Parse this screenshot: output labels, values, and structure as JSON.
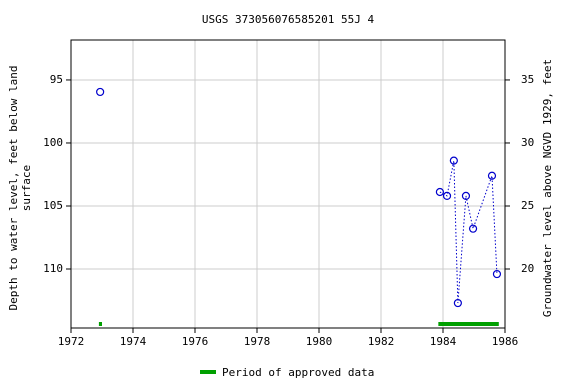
{
  "chart_data": {
    "type": "scatter",
    "title": "USGS 373056076585201 55J  4",
    "ylabel": [
      "Depth to water level, feet below land",
      "surface"
    ],
    "y2label": "Groundwater level above NGVD 1929, feet",
    "x": [
      1972.94,
      null,
      1983.9,
      1984.13,
      1984.35,
      1984.48,
      1984.74,
      1984.97,
      1985.58,
      1985.74
    ],
    "series": [
      {
        "color": "#0000cc",
        "values": [
          95.95,
          null,
          103.89,
          104.2,
          101.4,
          112.7,
          104.2,
          106.8,
          102.6,
          110.4
        ]
      }
    ],
    "xlim": [
      1972,
      1986
    ],
    "xticks": [
      1972,
      1974,
      1976,
      1978,
      1980,
      1982,
      1984,
      1986
    ],
    "ylim": [
      91.83,
      114.68
    ],
    "yticks": [
      95,
      100,
      105,
      110
    ],
    "y_inverted": true,
    "y2lim": [
      38.17,
      15.32
    ],
    "y2ticks": [
      20,
      25,
      30,
      35
    ],
    "grid": true,
    "approved": {
      "name": "Period of approved data",
      "color": "#00a000",
      "periods": [
        [
          1972.9,
          1973.0
        ],
        [
          1983.85,
          1985.8
        ]
      ]
    }
  }
}
